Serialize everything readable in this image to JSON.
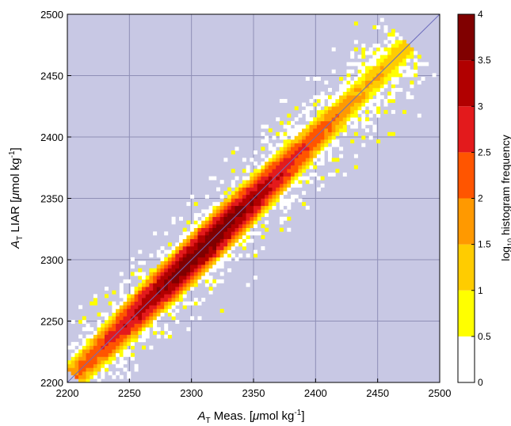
{
  "chart_data": {
    "type": "heatmap",
    "x_label": {
      "symbol": "A",
      "sub": "T",
      "text": " Meas. [",
      "mu": "μ",
      "unit": "mol kg",
      "sup": "-1",
      "close": "]"
    },
    "y_label": {
      "symbol": "A",
      "sub": "T",
      "text": " LIAR [",
      "mu": "μ",
      "unit": "mol kg",
      "sup": "-1",
      "close": "]"
    },
    "colorbar_label": {
      "pre": "log",
      "sub": "10",
      "post": " histogram frequency"
    },
    "xlim": [
      2200,
      2500
    ],
    "ylim": [
      2200,
      2500
    ],
    "x_ticks": [
      "2200",
      "2250",
      "2300",
      "2350",
      "2400",
      "2450",
      "2500"
    ],
    "y_ticks": [
      "2200",
      "2250",
      "2300",
      "2350",
      "2400",
      "2450",
      "2500"
    ],
    "x_tick_values": [
      2200,
      2250,
      2300,
      2350,
      2400,
      2450,
      2500
    ],
    "y_tick_values": [
      2200,
      2250,
      2300,
      2350,
      2400,
      2450,
      2500
    ],
    "colorbar_ticks": [
      "0",
      "0.5",
      "1",
      "1.5",
      "2",
      "2.5",
      "3",
      "3.5",
      "4"
    ],
    "colorbar_tick_values": [
      0,
      0.5,
      1,
      1.5,
      2,
      2.5,
      3,
      3.5,
      4
    ],
    "color_range": [
      0,
      4
    ],
    "colorbar_colors": [
      "#ffffff",
      "#ffff00",
      "#ffcc00",
      "#ff9900",
      "#ff5500",
      "#e31a1c",
      "#b10000",
      "#800000"
    ],
    "background_color": "#c8c8e4",
    "grid": true,
    "grid_color": "#8f8fb6",
    "one_to_one_line": {
      "from": [
        2200,
        2200
      ],
      "to": [
        2500,
        2500
      ],
      "color": "#6d6dbd"
    },
    "bin_width": 3,
    "density_model": {
      "diagonal_start": 2205,
      "diagonal_end": 2475,
      "peak_center": 2310,
      "peak_log10": 3.85,
      "base_log10": 1.2,
      "along_spread": 95,
      "across_sigma": 7,
      "outlier_sigma": 22
    }
  }
}
